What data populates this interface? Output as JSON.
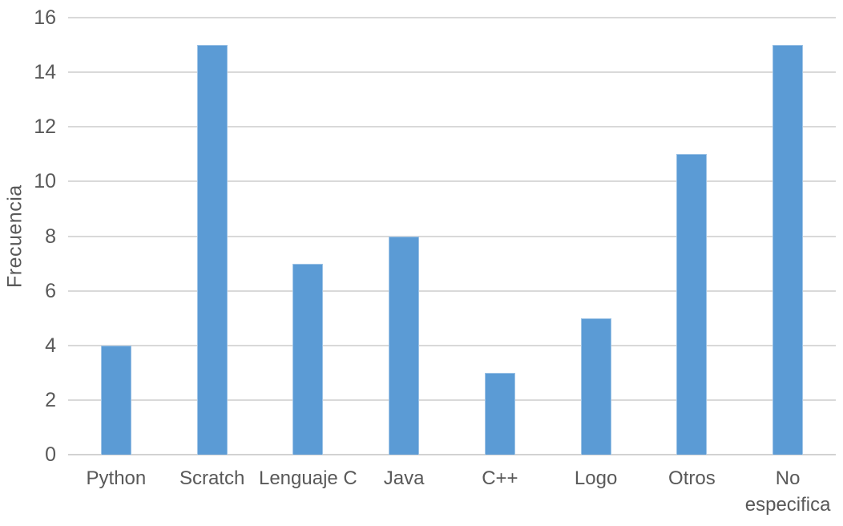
{
  "chart_data": {
    "type": "bar",
    "title": "",
    "xlabel": "",
    "ylabel": "Frecuencia",
    "categories": [
      "Python",
      "Scratch",
      "Lenguaje C",
      "Java",
      "C++",
      "Logo",
      "Otros",
      "No especifica"
    ],
    "values": [
      4,
      15,
      7,
      8,
      3,
      5,
      11,
      15
    ],
    "ylim": [
      0,
      16
    ],
    "yticks": [
      0,
      2,
      4,
      6,
      8,
      10,
      12,
      14,
      16
    ],
    "grid": true,
    "legend": false,
    "colors": {
      "bar_fill": "#5B9BD5",
      "bar_border": "#9DC3E6",
      "gridline": "#D9D9D9",
      "axis_line": "#D2D2D2",
      "text": "#595959",
      "background": "#FFFFFF"
    }
  }
}
